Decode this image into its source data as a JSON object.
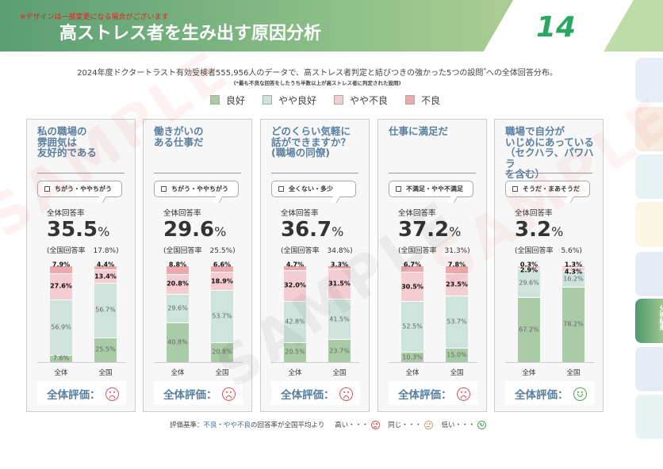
{
  "header": {
    "note": "※デザインは一部変更になる場合がございます",
    "title": "高ストレス者を生み出す原因分析",
    "page_number": "14"
  },
  "subtitle": "2024年度ドクタートラスト有効受検者555,956人のデータで、高ストレス者判定と結びつきの強かった5つの設問",
  "subtitle_mark": "*",
  "subtitle_tail": "への全体回答分布。",
  "footnote": "(*最も不良な回答をしたうち半数以上が高ストレス者に判定された設問)",
  "legend": [
    {
      "label": "良好",
      "color": "#a9cba5"
    },
    {
      "label": "やや良好",
      "color": "#cde3dc"
    },
    {
      "label": "やや不良",
      "color": "#f4cdd3"
    },
    {
      "label": "不良",
      "color": "#eba9ad"
    }
  ],
  "common": {
    "rate_label": "全体回答率",
    "national_prefix": "(全国回答率",
    "pct": "%",
    "x_labels": [
      "全体",
      "全国"
    ],
    "eval_label": "全体評価："
  },
  "cards": [
    {
      "title": [
        "私の職場の",
        "雰囲気は",
        "友好的である"
      ],
      "answer": "ちがう・ややちがう",
      "rate": "35.5",
      "national": "17.8%)",
      "eval": "sad",
      "bars": [
        [
          7.6,
          56.9,
          27.6,
          7.9
        ],
        [
          25.5,
          56.7,
          13.4,
          4.4
        ]
      ],
      "labels": [
        [
          "7.6%",
          "56.9%",
          "27.6%",
          "7.9%"
        ],
        [
          "25.5%",
          "56.7%",
          "13.4%",
          "4.4%"
        ]
      ]
    },
    {
      "title": [
        "働きがいの",
        "ある仕事だ"
      ],
      "answer": "ちがう・ややちがう",
      "rate": "29.6",
      "national": "25.5%)",
      "eval": "sad",
      "bars": [
        [
          40.8,
          29.6,
          20.8,
          8.8
        ],
        [
          20.8,
          53.7,
          18.9,
          6.6
        ]
      ],
      "labels": [
        [
          "40.8%",
          "29.6%",
          "20.8%",
          "8.8%"
        ],
        [
          "20.8%",
          "53.7%",
          "18.9%",
          "6.6%"
        ]
      ]
    },
    {
      "title": [
        "どのくらい気軽に",
        "話ができますか？",
        "(職場の同僚)"
      ],
      "answer": "全くない・多少",
      "rate": "36.7",
      "national": "34.8%)",
      "eval": "sad",
      "bars": [
        [
          20.5,
          42.8,
          32.0,
          4.7
        ],
        [
          23.7,
          41.5,
          31.5,
          3.3
        ]
      ],
      "labels": [
        [
          "20.5%",
          "42.8%",
          "32.0%",
          "4.7%"
        ],
        [
          "23.7%",
          "41.5%",
          "31.5%",
          "3.3%"
        ]
      ]
    },
    {
      "title": [
        "仕事に満足だ"
      ],
      "answer": "不満足・やや不満足",
      "rate": "37.2",
      "national": "31.3%)",
      "eval": "sad",
      "bars": [
        [
          10.3,
          52.5,
          30.5,
          6.7
        ],
        [
          15.0,
          53.7,
          23.5,
          7.8
        ]
      ],
      "labels": [
        [
          "10.3%",
          "52.5%",
          "30.5%",
          "6.7%"
        ],
        [
          "15.0%",
          "53.7%",
          "23.5%",
          "7.8%"
        ]
      ]
    },
    {
      "title": [
        "職場で自分が",
        "いじめにあっている",
        "（セクハラ、パワハラ",
        "を含む）"
      ],
      "answer": "そうだ・まあそうだ",
      "rate": "3.2",
      "national": "5.6%)",
      "eval": "happy",
      "bars": [
        [
          67.2,
          29.6,
          2.9,
          0.3
        ],
        [
          78.2,
          16.2,
          4.3,
          1.3
        ]
      ],
      "labels": [
        [
          "67.2%",
          "29.6%",
          "2.9%",
          "0.3%"
        ],
        [
          "78.2%",
          "16.2%",
          "4.3%",
          "1.3%"
        ]
      ]
    }
  ],
  "criteria": {
    "prefix": "評価基準：",
    "highlight": "不良・やや不良",
    "middle": "の回答率が全国平均より",
    "high": "高い・・・",
    "same": "同じ・・・",
    "low": "低い・・・"
  },
  "eval_colors": {
    "sad": "#d9535a",
    "neutral": "#c8a070",
    "happy": "#4ea060"
  },
  "side_tabs": {
    "active_label": "分析結果",
    "colors": [
      "#e8eef7",
      "#f8ebe0",
      "#e6f2f4",
      "#fbf6e4",
      "#e6ecf6",
      "active",
      "#e6ecf6",
      "#e8f3f4"
    ]
  },
  "watermark": "SAMPLE"
}
